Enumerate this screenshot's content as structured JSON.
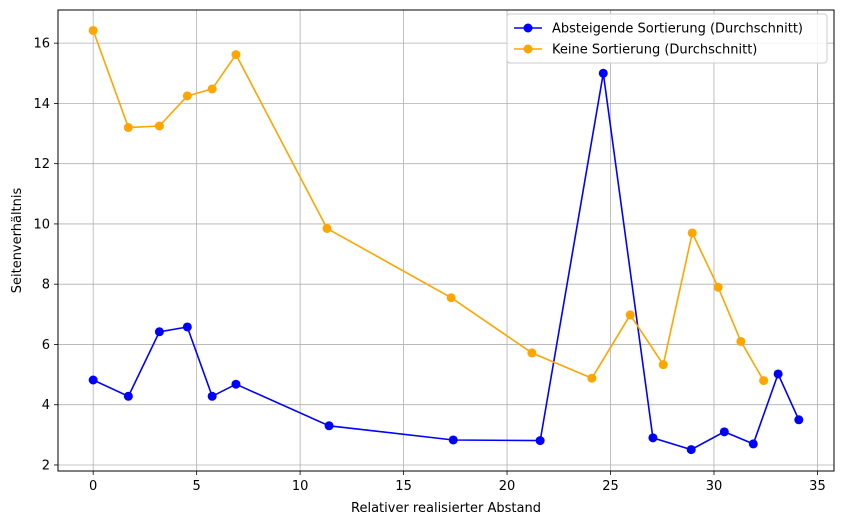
{
  "chart_data": {
    "type": "line",
    "title": "",
    "xlabel": "Relativer realisierter Abstand",
    "ylabel": "Seitenverhältnis",
    "xlim": [
      -1.7,
      35.8
    ],
    "ylim": [
      1.8,
      17.1
    ],
    "xticks": [
      0,
      5,
      10,
      15,
      20,
      25,
      30,
      35
    ],
    "yticks": [
      2,
      4,
      6,
      8,
      10,
      12,
      14,
      16
    ],
    "grid": true,
    "legend_position": "top-right",
    "series": [
      {
        "name": "Absteigende Sortierung (Durchschnitt)",
        "color": "#0000ff",
        "x": [
          0.0,
          1.7,
          3.2,
          4.55,
          5.75,
          6.9,
          11.4,
          17.4,
          21.6,
          24.65,
          27.05,
          28.9,
          30.5,
          31.9,
          33.1,
          34.1
        ],
        "y": [
          4.82,
          4.28,
          6.42,
          6.58,
          4.28,
          4.68,
          3.3,
          2.83,
          2.81,
          15.0,
          2.9,
          2.51,
          3.1,
          2.7,
          5.02,
          3.5
        ]
      },
      {
        "name": "Keine Sortierung (Durchschnitt)",
        "color": "#ffa500",
        "x": [
          0.0,
          1.7,
          3.2,
          4.55,
          5.75,
          6.9,
          11.3,
          17.3,
          21.2,
          24.1,
          25.95,
          27.55,
          28.95,
          30.2,
          31.3,
          32.4
        ],
        "y": [
          16.42,
          13.2,
          13.25,
          14.25,
          14.48,
          15.62,
          9.85,
          7.55,
          5.72,
          4.88,
          6.98,
          5.33,
          9.7,
          7.9,
          6.1,
          4.8
        ]
      }
    ]
  }
}
